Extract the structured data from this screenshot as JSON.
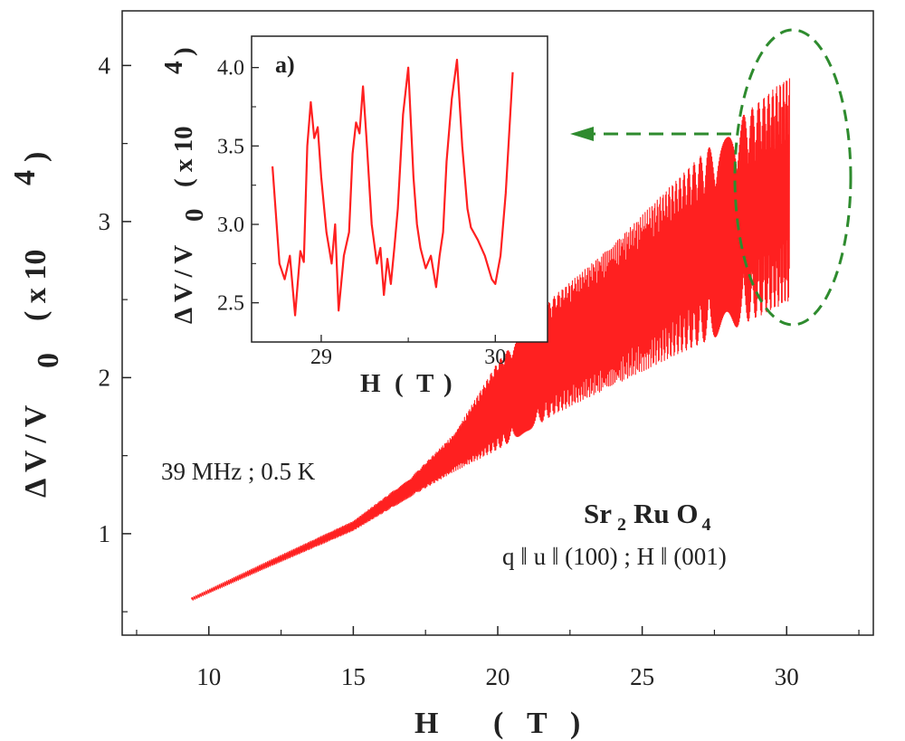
{
  "colors": {
    "trace": "#ff2020",
    "highlight": "#2e8b2e",
    "axis": "#222222"
  },
  "chart_data": [
    {
      "type": "line",
      "xlabel_parts": [
        "H",
        "(",
        "T",
        ")"
      ],
      "ylabel_parts": [
        "Δ V / V",
        "0",
        "( x 10",
        "4",
        ")"
      ],
      "xlim": [
        7,
        33
      ],
      "ylim": [
        0.35,
        4.35
      ],
      "xticks": [
        10,
        15,
        20,
        25,
        30
      ],
      "yticks": [
        1,
        2,
        3,
        4
      ],
      "grid": false,
      "annotations": [
        "39 MHz ; 0.5 K",
        "q ǁ u ǁ (100) ;  H ǁ (001)"
      ],
      "compound": {
        "a": "Sr",
        "sub1": "2",
        "b": "Ru O",
        "sub2": "4"
      },
      "series": [
        {
          "x_range": [
            9.4,
            30.1
          ],
          "baseline": [
            [
              9.4,
              0.58
            ],
            [
              12,
              0.8
            ],
            [
              15,
              1.05
            ],
            [
              17,
              1.3
            ],
            [
              18.5,
              1.52
            ],
            [
              20,
              1.82
            ],
            [
              22,
              2.15
            ],
            [
              24,
              2.4
            ],
            [
              26,
              2.68
            ],
            [
              28,
              2.95
            ],
            [
              30,
              3.2
            ]
          ],
          "oscillation_amplitude": [
            [
              9.4,
              0.01
            ],
            [
              15,
              0.03
            ],
            [
              17,
              0.06
            ],
            [
              18.5,
              0.12
            ],
            [
              20,
              0.28
            ],
            [
              22,
              0.38
            ],
            [
              24,
              0.45
            ],
            [
              26,
              0.55
            ],
            [
              28,
              0.65
            ],
            [
              30,
              0.72
            ]
          ]
        }
      ]
    },
    {
      "type": "line",
      "label": "a)",
      "xlabel_parts": [
        "H",
        "(",
        "T",
        ")"
      ],
      "ylabel_parts": [
        "Δ V / V",
        "0",
        "( x 10",
        "4",
        ")"
      ],
      "xlim": [
        28.6,
        30.3
      ],
      "ylim": [
        2.25,
        4.2
      ],
      "xticks": [
        29,
        30
      ],
      "yticks": [
        "2.5",
        "3.0",
        "3.5",
        "4.0"
      ],
      "grid": false,
      "series": [
        {
          "x": [
            28.72,
            28.76,
            28.79,
            28.82,
            28.85,
            28.88,
            28.9,
            28.92,
            28.94,
            28.96,
            28.98,
            29.0,
            29.03,
            29.06,
            29.08,
            29.1,
            29.13,
            29.16,
            29.18,
            29.2,
            29.22,
            29.24,
            29.26,
            29.29,
            29.32,
            29.34,
            29.36,
            29.38,
            29.4,
            29.42,
            29.44,
            29.47,
            29.5,
            29.53,
            29.55,
            29.57,
            29.6,
            29.63,
            29.66,
            29.68,
            29.7,
            29.72,
            29.75,
            29.78,
            29.81,
            29.84,
            29.86,
            29.9,
            29.94,
            29.98,
            30.0,
            30.03,
            30.06,
            30.1
          ],
          "y": [
            3.37,
            2.75,
            2.65,
            2.8,
            2.42,
            2.83,
            2.76,
            3.5,
            3.78,
            3.55,
            3.62,
            3.3,
            2.95,
            2.75,
            3.0,
            2.45,
            2.8,
            2.95,
            3.45,
            3.65,
            3.58,
            3.88,
            3.55,
            3.0,
            2.75,
            2.85,
            2.55,
            2.78,
            2.62,
            2.85,
            3.1,
            3.7,
            4.0,
            3.3,
            3.0,
            2.85,
            2.72,
            2.8,
            2.6,
            2.8,
            2.95,
            3.4,
            3.8,
            4.05,
            3.5,
            3.1,
            2.98,
            2.9,
            2.8,
            2.65,
            2.62,
            2.8,
            3.2,
            3.97
          ]
        }
      ]
    }
  ]
}
